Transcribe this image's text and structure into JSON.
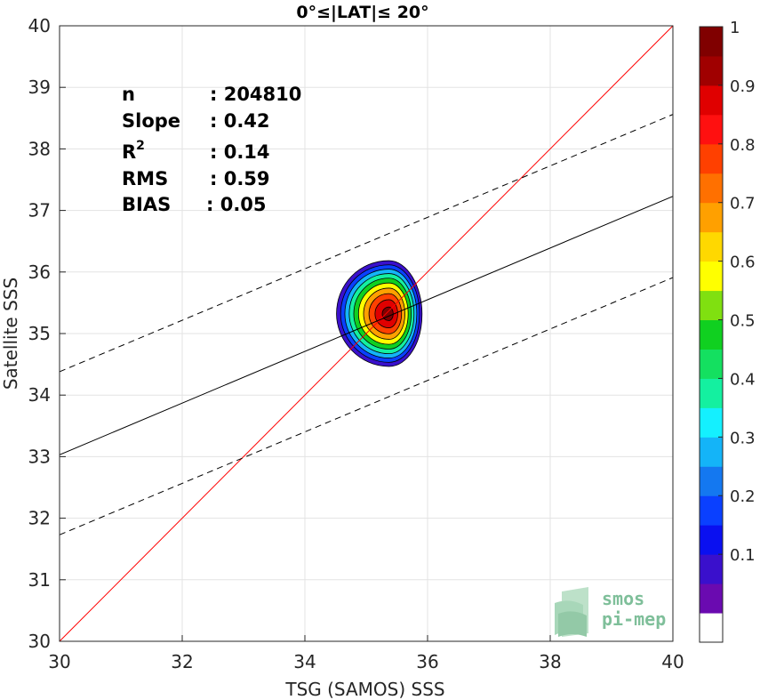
{
  "chart_data": {
    "type": "scatter",
    "title": "0°≤|LAT|≤ 20°",
    "xlabel": "TSG (SAMOS) SSS",
    "ylabel": "Satellite SSS",
    "xlim": [
      30,
      40
    ],
    "ylim": [
      30,
      40
    ],
    "xticks": [
      30,
      32,
      34,
      36,
      38,
      40
    ],
    "yticks": [
      30,
      31,
      32,
      33,
      34,
      35,
      36,
      37,
      38,
      39,
      40
    ],
    "grid": true,
    "stats": [
      {
        "label": "n",
        "value": ": 204810"
      },
      {
        "label": "Slope",
        "value": ": 0.42"
      },
      {
        "label": "R",
        "sup": "2",
        "value": ": 0.14"
      },
      {
        "label": "RMS",
        "value": ": 0.59"
      },
      {
        "label": "BIAS",
        "value": ": 0.05"
      }
    ],
    "lines": {
      "identity": {
        "x": [
          30,
          40
        ],
        "y": [
          30,
          40
        ],
        "color": "#ff0000"
      },
      "regression": {
        "x": [
          30,
          40
        ],
        "y": [
          33.03,
          37.23
        ],
        "color": "#000000"
      },
      "upper_bound": {
        "x": [
          30,
          40
        ],
        "y": [
          34.38,
          38.56
        ],
        "color": "#000000",
        "dash": true
      },
      "lower_bound": {
        "x": [
          30,
          40
        ],
        "y": [
          31.73,
          35.91
        ],
        "color": "#000000",
        "dash": true
      }
    },
    "density": {
      "center": [
        35.37,
        35.32
      ],
      "levels": [
        0.05,
        0.15,
        0.25,
        0.35,
        0.45,
        0.55,
        0.65,
        0.75,
        0.85,
        0.95
      ]
    },
    "colorbar": {
      "ticks": [
        0.1,
        0.2,
        0.3,
        0.4,
        0.5,
        0.6,
        0.7,
        0.8,
        0.9,
        1
      ],
      "tick_labels": [
        "0.1",
        "0.2",
        "0.3",
        "0.4",
        "0.5",
        "0.6",
        "0.7",
        "0.8",
        "0.9",
        "1"
      ],
      "colors": [
        "#ffffff",
        "#6a0ab0",
        "#3a10cc",
        "#0a10f0",
        "#0a40ff",
        "#1478f0",
        "#14b4f8",
        "#14f0ff",
        "#14f0a0",
        "#14e060",
        "#10d020",
        "#80e010",
        "#ffff00",
        "#ffd800",
        "#ffa000",
        "#ff7000",
        "#ff4000",
        "#ff1010",
        "#e00000",
        "#a00000",
        "#800000"
      ]
    },
    "logo": {
      "line1": "smos",
      "line2": "pi-mep"
    }
  }
}
